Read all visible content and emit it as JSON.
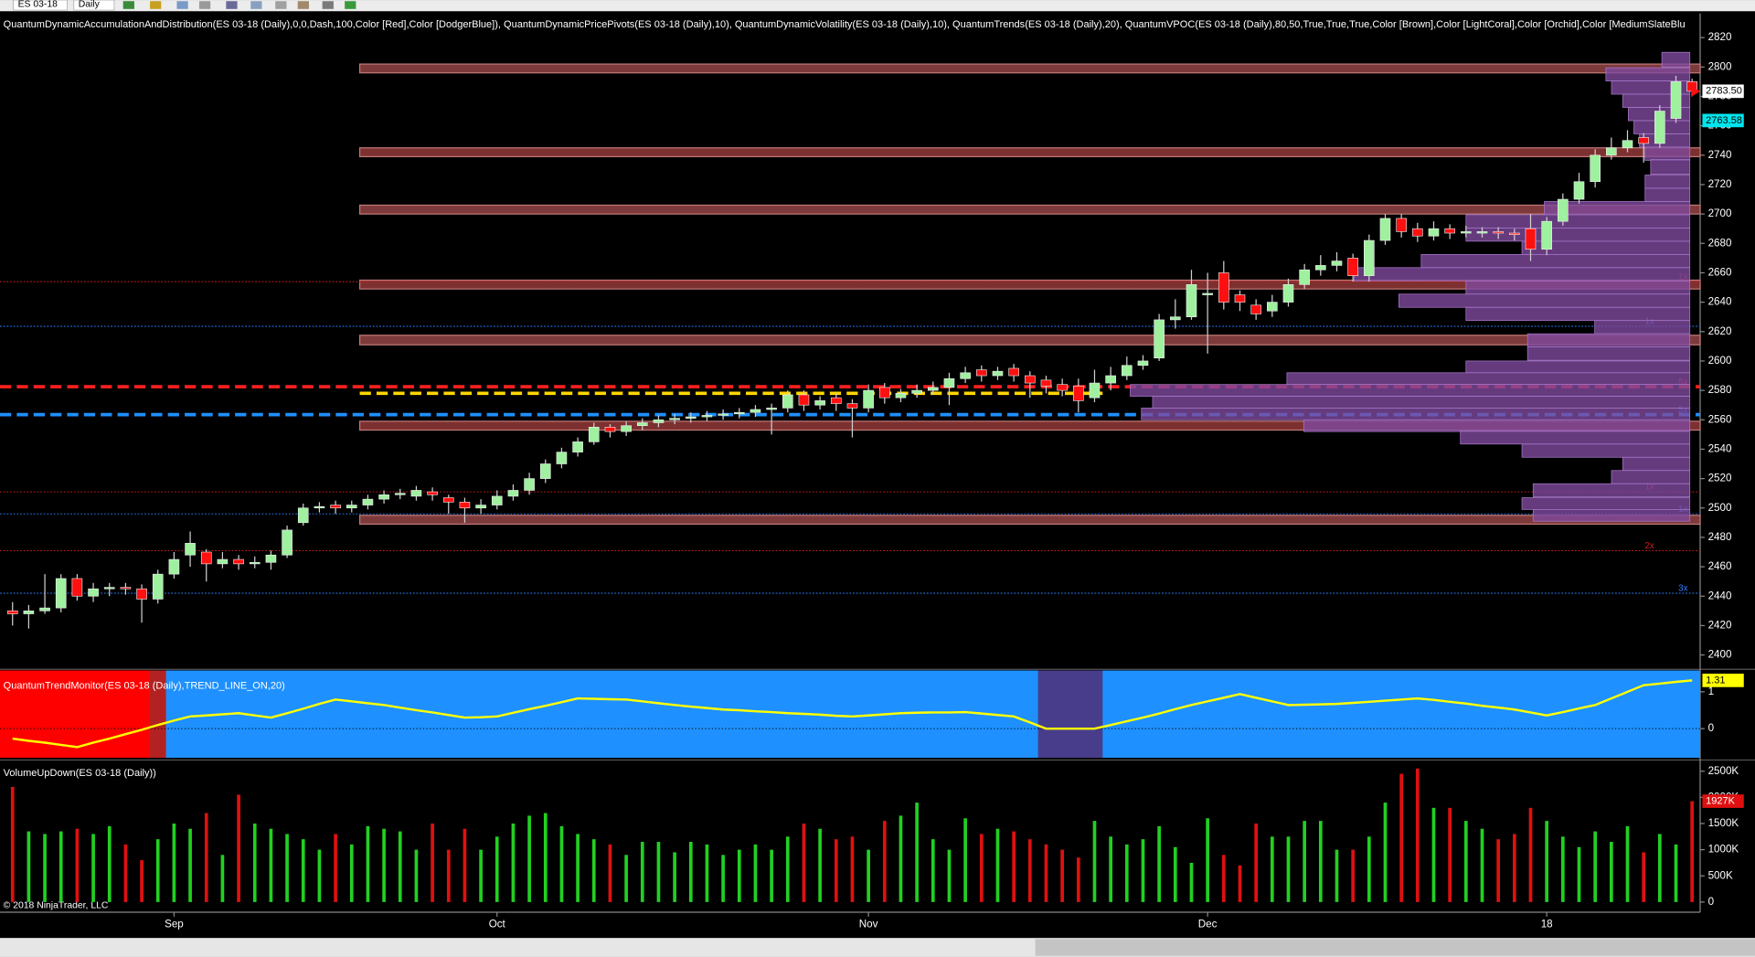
{
  "toolbar": {
    "instrument": "ES 03-18",
    "interval": "Daily"
  },
  "chart_data": [
    {
      "type": "candlestick",
      "title": "QuantumDynamicAccumulationAndDistribution(ES 03-18 (Daily),0,0,Dash,100,Color [Red],Color [DodgerBlue]), QuantumDynamicPricePivots(ES 03-18 (Daily),10), QuantumDynamicVolatility(ES 03-18 (Daily),10), QuantumTrends(ES 03-18 (Daily),20), QuantumVPOC(ES 03-18 (Daily),80,50,True,True,True,Color [Brown],Color [LightCoral],Color [Orchid],Color [MediumSlateBlu",
      "categories": [
        null,
        null,
        null,
        null,
        null,
        null,
        null,
        null,
        null,
        null,
        "Sep",
        null,
        null,
        null,
        null,
        null,
        null,
        null,
        null,
        null,
        null,
        null,
        null,
        null,
        null,
        null,
        null,
        null,
        null,
        null,
        "Oct",
        null,
        null,
        null,
        null,
        null,
        null,
        null,
        null,
        null,
        null,
        null,
        null,
        null,
        null,
        null,
        null,
        null,
        null,
        null,
        null,
        null,
        null,
        "Nov",
        null,
        null,
        null,
        null,
        null,
        null,
        null,
        null,
        null,
        null,
        null,
        null,
        null,
        null,
        null,
        null,
        null,
        null,
        null,
        null,
        "Dec",
        null,
        null,
        null,
        null,
        null,
        null,
        null,
        null,
        null,
        null,
        null,
        null,
        null,
        null,
        null,
        null,
        null,
        null,
        null,
        null,
        "18",
        null,
        null,
        null,
        null,
        null,
        null,
        null,
        null,
        null
      ],
      "open": [
        2430,
        2428,
        2430,
        2432,
        2452,
        2440,
        2445,
        2446,
        2445,
        2438,
        2455,
        2468,
        2470,
        2462,
        2465,
        2462,
        2463,
        2468,
        2490,
        2500,
        2502,
        2500,
        2502,
        2506,
        2509,
        2508,
        2511,
        2507,
        2504,
        2500,
        2502,
        2508,
        2512,
        2520,
        2530,
        2538,
        2545,
        2555,
        2552,
        2556,
        2558,
        2560,
        2561,
        2562,
        2563,
        2564,
        2565,
        2567,
        2568,
        2577,
        2570,
        2575,
        2571,
        2568,
        2582,
        2575,
        2578,
        2580,
        2582,
        2588,
        2594,
        2590,
        2595,
        2590,
        2587,
        2584,
        2583,
        2575,
        2585,
        2590,
        2597,
        2602,
        2628,
        2630,
        2645,
        2660,
        2645,
        2638,
        2634,
        2640,
        2652,
        2662,
        2665,
        2670,
        2658,
        2682,
        2697,
        2690,
        2685,
        2690,
        2687,
        2687,
        2688,
        2687,
        2690,
        2676,
        2695,
        2710,
        2722,
        2740,
        2745,
        2752,
        2748,
        2765,
        2790
      ],
      "high": [
        2436,
        2434,
        2455,
        2455,
        2455,
        2449,
        2449,
        2449,
        2448,
        2458,
        2470,
        2484,
        2472,
        2470,
        2468,
        2467,
        2471,
        2488,
        2503,
        2504,
        2505,
        2505,
        2509,
        2512,
        2513,
        2515,
        2514,
        2509,
        2507,
        2506,
        2512,
        2516,
        2524,
        2533,
        2541,
        2548,
        2558,
        2557,
        2559,
        2561,
        2563,
        2564,
        2565,
        2566,
        2567,
        2568,
        2570,
        2571,
        2580,
        2580,
        2576,
        2578,
        2574,
        2584,
        2585,
        2581,
        2584,
        2586,
        2592,
        2596,
        2597,
        2596,
        2598,
        2593,
        2590,
        2588,
        2588,
        2594,
        2596,
        2603,
        2604,
        2632,
        2642,
        2662,
        2660,
        2668,
        2648,
        2642,
        2645,
        2656,
        2666,
        2672,
        2674,
        2673,
        2686,
        2700,
        2700,
        2694,
        2695,
        2693,
        2692,
        2691,
        2691,
        2690,
        2700,
        2698,
        2714,
        2728,
        2744,
        2752,
        2757,
        2755,
        2774,
        2794,
        2792
      ],
      "low": [
        2420,
        2418,
        2428,
        2429,
        2437,
        2436,
        2440,
        2441,
        2422,
        2435,
        2452,
        2460,
        2450,
        2459,
        2458,
        2459,
        2458,
        2466,
        2488,
        2497,
        2496,
        2497,
        2499,
        2503,
        2506,
        2505,
        2505,
        2496,
        2490,
        2496,
        2499,
        2505,
        2509,
        2517,
        2527,
        2535,
        2543,
        2548,
        2549,
        2553,
        2555,
        2557,
        2558,
        2559,
        2560,
        2561,
        2562,
        2550,
        2565,
        2566,
        2567,
        2566,
        2548,
        2565,
        2571,
        2572,
        2575,
        2577,
        2570,
        2585,
        2586,
        2587,
        2586,
        2575,
        2578,
        2576,
        2565,
        2572,
        2580,
        2587,
        2594,
        2600,
        2622,
        2628,
        2605,
        2635,
        2634,
        2628,
        2630,
        2637,
        2649,
        2658,
        2661,
        2654,
        2654,
        2679,
        2684,
        2681,
        2682,
        2683,
        2684,
        2684,
        2683,
        2682,
        2668,
        2672,
        2692,
        2707,
        2718,
        2737,
        2742,
        2735,
        2745,
        2762,
        2780
      ],
      "close": [
        2428,
        2430,
        2432,
        2452,
        2440,
        2445,
        2446,
        2445,
        2438,
        2455,
        2465,
        2476,
        2462,
        2465,
        2462,
        2463,
        2468,
        2485,
        2500,
        2501,
        2500,
        2502,
        2506,
        2509,
        2510,
        2512,
        2509,
        2504,
        2500,
        2502,
        2508,
        2512,
        2520,
        2530,
        2538,
        2545,
        2555,
        2552,
        2556,
        2558,
        2560,
        2561,
        2562,
        2563,
        2564,
        2565,
        2567,
        2568,
        2577,
        2570,
        2573,
        2571,
        2568,
        2580,
        2575,
        2578,
        2580,
        2582,
        2588,
        2592,
        2590,
        2593,
        2590,
        2585,
        2583,
        2580,
        2573,
        2585,
        2590,
        2597,
        2600,
        2628,
        2630,
        2652,
        2646,
        2640,
        2640,
        2632,
        2640,
        2652,
        2662,
        2665,
        2668,
        2658,
        2682,
        2697,
        2688,
        2685,
        2690,
        2687,
        2688,
        2688,
        2687,
        2686,
        2676,
        2695,
        2710,
        2722,
        2740,
        2745,
        2750,
        2748,
        2770,
        2790,
        2783.5
      ],
      "close_label": "2783.50",
      "up_color": "#9ff09f",
      "down_color": "#ff1010",
      "wick_color": "#d0d0d0",
      "ylim": [
        2391,
        2825
      ],
      "yticks": [
        2400,
        2420,
        2440,
        2460,
        2480,
        2500,
        2520,
        2540,
        2560,
        2580,
        2600,
        2620,
        2640,
        2660,
        2680,
        2700,
        2720,
        2740,
        2760,
        2780,
        2800,
        2820
      ],
      "zones": [
        {
          "low": 2796,
          "high": 2802,
          "start": 22,
          "end": 104,
          "color": "#7d3a3a"
        },
        {
          "low": 2739,
          "high": 2745,
          "start": 22,
          "end": 104,
          "color": "#7d3030"
        },
        {
          "low": 2700,
          "high": 2706,
          "start": 22,
          "end": 104,
          "color": "#7d3a3a"
        },
        {
          "low": 2649,
          "high": 2655,
          "start": 22,
          "end": 104,
          "color": "#7d3030"
        },
        {
          "low": 2611,
          "high": 2617.5,
          "start": 22,
          "end": 104,
          "color": "#7d3a3a"
        },
        {
          "low": 2553,
          "high": 2559,
          "start": 22,
          "end": 104,
          "color": "#7d3030"
        },
        {
          "low": 2489,
          "high": 2495,
          "start": 22,
          "end": 104,
          "color": "#7d3a3a"
        }
      ],
      "levels": [
        {
          "value": 2654,
          "color": "#d02020",
          "style": "dot",
          "label": "1x"
        },
        {
          "value": 2623.6,
          "color": "#2a7fff",
          "style": "dot",
          "label": "1x"
        },
        {
          "value": 2582.5,
          "color": "#ff2020",
          "style": "dash",
          "label": "5x"
        },
        {
          "value": 2578,
          "color": "#ffd700",
          "style": "dash",
          "start": 22,
          "end": 67
        },
        {
          "value": 2563.5,
          "color": "#1e90ff",
          "style": "dash",
          "label": "5x"
        },
        {
          "value": 2511,
          "color": "#d02020",
          "style": "dot",
          "label": "1x"
        },
        {
          "value": 2496,
          "color": "#2a7fff",
          "style": "dot",
          "label": "1x"
        },
        {
          "value": 2471,
          "color": "#d02020",
          "style": "dot",
          "label": "2x"
        },
        {
          "value": 2442,
          "color": "#2a7fff",
          "style": "dot",
          "label": "3x"
        }
      ],
      "marker": {
        "value": 2763.58,
        "label": "2763.58",
        "color": "#00e5ee"
      },
      "profile": {
        "color": "#7e4a9e",
        "prices": [
          2805,
          2795,
          2786,
          2777,
          2768,
          2759,
          2750,
          2741,
          2732,
          2722,
          2713,
          2704,
          2695,
          2686,
          2677,
          2668,
          2659,
          2650,
          2641,
          2632,
          2623,
          2614,
          2605,
          2596,
          2588,
          2580,
          2572,
          2564,
          2556,
          2548,
          2539,
          2530,
          2521,
          2512,
          2503,
          2495
        ],
        "values": [
          25,
          75,
          70,
          60,
          55,
          50,
          45,
          40,
          35,
          40,
          40,
          130,
          200,
          200,
          150,
          240,
          300,
          200,
          260,
          200,
          85,
          145,
          145,
          200,
          360,
          500,
          480,
          490,
          345,
          205,
          150,
          60,
          70,
          140,
          150,
          140
        ]
      }
    },
    {
      "type": "line",
      "title": "QuantumTrendMonitor(ES 03-18 (Daily),TREND_LINE_ON,20)",
      "values": [
        -0.27,
        -0.33,
        -0.38,
        -0.44,
        -0.5,
        -0.38,
        -0.27,
        -0.15,
        -0.03,
        0.1,
        0.22,
        0.33,
        0.36,
        0.39,
        0.42,
        0.36,
        0.3,
        0.42,
        0.54,
        0.67,
        0.79,
        0.74,
        0.69,
        0.64,
        0.57,
        0.5,
        0.44,
        0.37,
        0.3,
        0.31,
        0.33,
        0.43,
        0.53,
        0.62,
        0.72,
        0.82,
        0.81,
        0.8,
        0.79,
        0.74,
        0.69,
        0.64,
        0.6,
        0.56,
        0.52,
        0.5,
        0.47,
        0.45,
        0.42,
        0.4,
        0.38,
        0.35,
        0.33,
        0.36,
        0.39,
        0.42,
        0.43,
        0.44,
        0.44,
        0.45,
        0.41,
        0.37,
        0.33,
        0.17,
        0,
        0,
        0,
        0,
        0.1,
        0.2,
        0.3,
        0.41,
        0.53,
        0.64,
        0.74,
        0.84,
        0.94,
        0.84,
        0.74,
        0.64,
        0.65,
        0.66,
        0.67,
        0.7,
        0.73,
        0.76,
        0.79,
        0.82,
        0.78,
        0.73,
        0.68,
        0.62,
        0.57,
        0.52,
        0.44,
        0.36,
        0.45,
        0.55,
        0.64,
        0.82,
        1.0,
        1.18,
        1.22,
        1.27,
        1.31
      ],
      "color": "#ffff00",
      "background": "#1e90ff",
      "regions": [
        {
          "start": 0,
          "end": 8,
          "color": "#ff0000"
        },
        {
          "start": 9,
          "end": 9,
          "color": "#b22222"
        },
        {
          "start": 64,
          "end": 67,
          "color": "#483d8b"
        }
      ],
      "ylim": [
        -0.79,
        1.58
      ],
      "yticks": [
        1,
        0
      ]
    },
    {
      "type": "bar",
      "title": "VolumeUpDown(ES 03-18 (Daily))",
      "values": [
        2200,
        1350,
        1300,
        1350,
        1400,
        1300,
        1450,
        1100,
        800,
        1200,
        1500,
        1400,
        1700,
        900,
        2050,
        1500,
        1400,
        1300,
        1200,
        1000,
        1300,
        1100,
        1450,
        1400,
        1350,
        1000,
        1500,
        1000,
        1400,
        1000,
        1250,
        1500,
        1650,
        1700,
        1450,
        1300,
        1200,
        1100,
        900,
        1150,
        1150,
        950,
        1150,
        1100,
        900,
        1000,
        1100,
        1000,
        1250,
        1500,
        1400,
        1200,
        1250,
        1000,
        1550,
        1650,
        1900,
        1200,
        1000,
        1600,
        1300,
        1400,
        1350,
        1200,
        1100,
        1000,
        850,
        1550,
        1250,
        1100,
        1200,
        1450,
        1050,
        750,
        1600,
        900,
        700,
        1500,
        1250,
        1250,
        1550,
        1550,
        1000,
        1000,
        1250,
        1900,
        2450,
        2550,
        1800,
        1800,
        1550,
        1400,
        1200,
        1300,
        1800,
        1550,
        1250,
        1050,
        1350,
        1150,
        1450,
        950,
        1300,
        1100,
        1927
      ],
      "last_label": "1927K",
      "up_color": "#22d022",
      "down_color": "#e01010",
      "ylim": [
        -130,
        2650
      ],
      "yticks": [
        0,
        {
          "value": 500,
          "label": "500K"
        },
        {
          "value": 1000,
          "label": "1000K"
        },
        {
          "value": 1500,
          "label": "1500K"
        },
        {
          "value": 2000,
          "label": "2000K"
        },
        {
          "value": 2500,
          "label": "2500K"
        }
      ]
    }
  ],
  "footer": {
    "copyright": "© 2018 NinjaTrader, LLC"
  }
}
